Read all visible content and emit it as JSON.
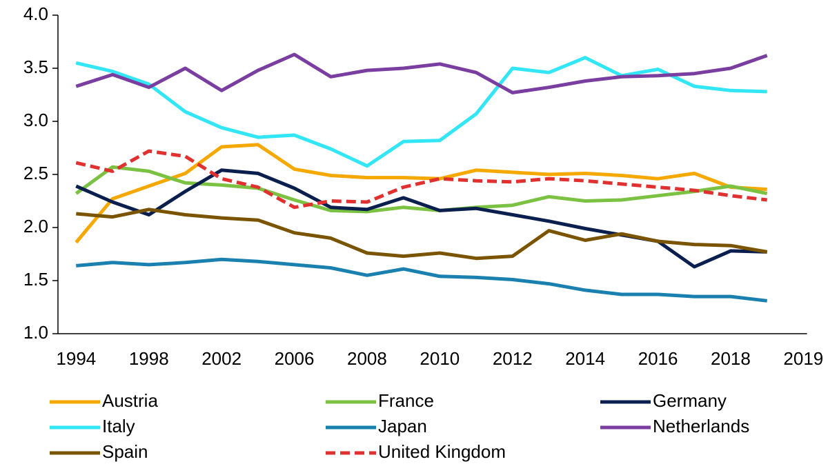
{
  "chart_data": {
    "type": "line",
    "categories": [
      "1994",
      null,
      "1998",
      null,
      "2002",
      null,
      "2006",
      null,
      "2008",
      null,
      "2010",
      null,
      "2012",
      null,
      "2014",
      null,
      "2016",
      null,
      "2018",
      null,
      "2019"
    ],
    "ylim": [
      1.0,
      4.0
    ],
    "yticks": [
      {
        "value": 1.0,
        "label": "1.0"
      },
      1.5,
      {
        "value": 2.0,
        "label": "2.0"
      },
      2.5,
      {
        "value": 3.0,
        "label": "3.0"
      },
      3.5,
      {
        "value": 4.0,
        "label": "4.0"
      }
    ],
    "grid": false,
    "legend": "bottom",
    "series": [
      {
        "name": "Austria",
        "color": "#f5a800",
        "values": [
          1.86,
          2.27,
          2.39,
          2.51,
          2.76,
          2.78,
          2.55,
          2.49,
          2.47,
          2.47,
          2.46,
          2.54,
          2.52,
          2.5,
          2.51,
          2.49,
          2.46,
          2.51,
          2.38,
          2.36,
          null
        ]
      },
      {
        "name": "France",
        "color": "#7cc242",
        "values": [
          2.32,
          2.57,
          2.53,
          2.42,
          2.4,
          2.37,
          2.26,
          2.16,
          2.15,
          2.19,
          2.16,
          2.19,
          2.21,
          2.29,
          2.25,
          2.26,
          2.3,
          2.34,
          2.39,
          2.32,
          null
        ]
      },
      {
        "name": "Germany",
        "color": "#0b1f4f",
        "values": [
          2.39,
          2.24,
          2.12,
          2.34,
          2.54,
          2.51,
          2.37,
          2.19,
          2.17,
          2.28,
          2.16,
          2.18,
          2.12,
          2.06,
          1.99,
          1.93,
          1.87,
          1.63,
          1.78,
          1.77,
          null
        ]
      },
      {
        "name": "Italy",
        "color": "#33e6f5",
        "values": [
          3.55,
          3.47,
          3.35,
          3.09,
          2.94,
          2.85,
          2.87,
          2.74,
          2.58,
          2.81,
          2.82,
          3.07,
          3.5,
          3.46,
          3.6,
          3.43,
          3.49,
          3.33,
          3.29,
          3.28,
          null
        ]
      },
      {
        "name": "Japan",
        "color": "#1a80b0",
        "values": [
          1.64,
          1.67,
          1.65,
          1.67,
          1.7,
          1.68,
          1.65,
          1.62,
          1.55,
          1.61,
          1.54,
          1.53,
          1.51,
          1.47,
          1.41,
          1.37,
          1.37,
          1.35,
          1.35,
          1.31,
          null
        ]
      },
      {
        "name": "Netherlands",
        "color": "#7a3ea0",
        "values": [
          3.33,
          3.44,
          3.32,
          3.5,
          3.29,
          3.48,
          3.63,
          3.42,
          3.48,
          3.5,
          3.54,
          3.46,
          3.27,
          3.32,
          3.38,
          3.42,
          3.43,
          3.45,
          3.5,
          3.62,
          null
        ]
      },
      {
        "name": "Spain",
        "color": "#7a5400",
        "values": [
          2.13,
          2.1,
          2.17,
          2.12,
          2.09,
          2.07,
          1.95,
          1.9,
          1.76,
          1.73,
          1.76,
          1.71,
          1.73,
          1.97,
          1.88,
          1.94,
          1.87,
          1.84,
          1.83,
          1.77,
          null
        ]
      },
      {
        "name": "United Kingdom",
        "color": "#e03030",
        "dashed": true,
        "values": [
          2.61,
          2.53,
          2.72,
          2.67,
          2.46,
          2.38,
          2.19,
          2.25,
          2.24,
          2.38,
          2.46,
          2.44,
          2.43,
          2.46,
          2.44,
          2.41,
          2.38,
          2.35,
          2.3,
          2.26,
          null
        ]
      }
    ]
  }
}
